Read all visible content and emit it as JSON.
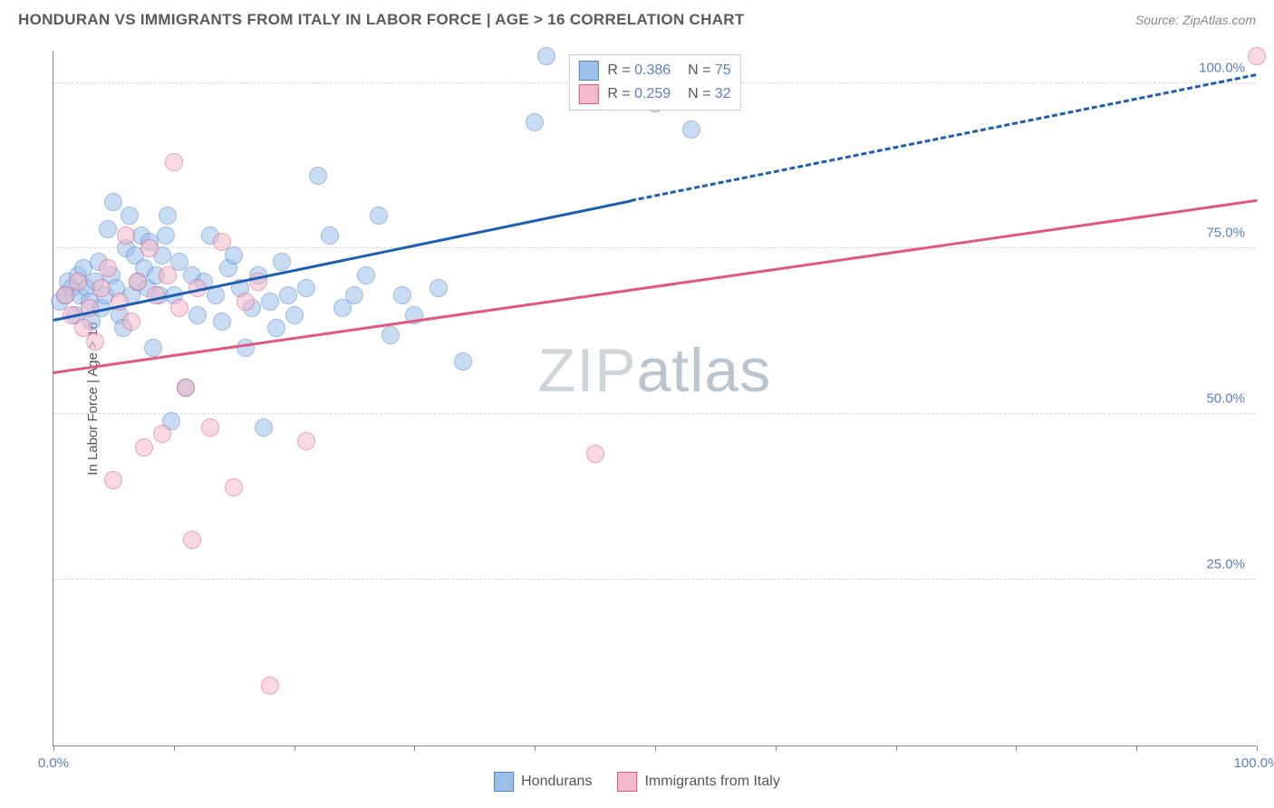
{
  "header": {
    "title": "HONDURAN VS IMMIGRANTS FROM ITALY IN LABOR FORCE | AGE > 16 CORRELATION CHART",
    "source": "Source: ZipAtlas.com"
  },
  "chart": {
    "type": "scatter",
    "ylabel": "In Labor Force | Age > 16",
    "background_color": "#ffffff",
    "grid_color": "#d6d6d6",
    "axis_color": "#888888",
    "label_fontsize": 15,
    "tick_color": "#5b7fbf",
    "xlim": [
      0,
      100
    ],
    "ylim": [
      0,
      105
    ],
    "xticks": [
      0,
      10,
      20,
      30,
      40,
      50,
      60,
      70,
      80,
      90,
      100
    ],
    "xtick_labels": {
      "0": "0.0%",
      "100": "100.0%"
    },
    "yticks": [
      25,
      50,
      75,
      100
    ],
    "ytick_labels": [
      "25.0%",
      "50.0%",
      "75.0%",
      "100.0%"
    ],
    "marker_radius": 9,
    "marker_opacity": 0.55,
    "watermark": "ZIPatlas",
    "series": [
      {
        "key": "hondurans",
        "label": "Hondurans",
        "color_fill": "#9cc0ea",
        "color_stroke": "#4f85c7",
        "R": "0.386",
        "N": "75",
        "trend": {
          "x1": 0,
          "y1": 64,
          "x2_solid": 48,
          "y2_solid": 82,
          "x2": 100,
          "y2": 101,
          "color": "#1b5fb4"
        },
        "points": [
          [
            0.5,
            67
          ],
          [
            1,
            68
          ],
          [
            1.2,
            70
          ],
          [
            1.5,
            69
          ],
          [
            1.8,
            65
          ],
          [
            2,
            71
          ],
          [
            2.2,
            68
          ],
          [
            2.5,
            72
          ],
          [
            2.8,
            69
          ],
          [
            3,
            67
          ],
          [
            3.2,
            64
          ],
          [
            3.5,
            70
          ],
          [
            3.8,
            73
          ],
          [
            4,
            66
          ],
          [
            4.3,
            68
          ],
          [
            4.5,
            78
          ],
          [
            4.8,
            71
          ],
          [
            5,
            82
          ],
          [
            5.2,
            69
          ],
          [
            5.5,
            65
          ],
          [
            5.8,
            63
          ],
          [
            6,
            75
          ],
          [
            6.3,
            80
          ],
          [
            6.5,
            68
          ],
          [
            6.8,
            74
          ],
          [
            7,
            70
          ],
          [
            7.3,
            77
          ],
          [
            7.5,
            72
          ],
          [
            7.8,
            69
          ],
          [
            8,
            76
          ],
          [
            8.3,
            60
          ],
          [
            8.5,
            71
          ],
          [
            8.8,
            68
          ],
          [
            9,
            74
          ],
          [
            9.3,
            77
          ],
          [
            9.5,
            80
          ],
          [
            9.8,
            49
          ],
          [
            10,
            68
          ],
          [
            10.5,
            73
          ],
          [
            11,
            54
          ],
          [
            11.5,
            71
          ],
          [
            12,
            65
          ],
          [
            12.5,
            70
          ],
          [
            13,
            77
          ],
          [
            13.5,
            68
          ],
          [
            14,
            64
          ],
          [
            14.5,
            72
          ],
          [
            15,
            74
          ],
          [
            15.5,
            69
          ],
          [
            16,
            60
          ],
          [
            16.5,
            66
          ],
          [
            17,
            71
          ],
          [
            17.5,
            48
          ],
          [
            18,
            67
          ],
          [
            18.5,
            63
          ],
          [
            19,
            73
          ],
          [
            19.5,
            68
          ],
          [
            20,
            65
          ],
          [
            21,
            69
          ],
          [
            22,
            86
          ],
          [
            23,
            77
          ],
          [
            24,
            66
          ],
          [
            25,
            68
          ],
          [
            26,
            71
          ],
          [
            27,
            80
          ],
          [
            28,
            62
          ],
          [
            29,
            68
          ],
          [
            30,
            65
          ],
          [
            32,
            69
          ],
          [
            34,
            58
          ],
          [
            40,
            94
          ],
          [
            41,
            104
          ],
          [
            50,
            97
          ],
          [
            53,
            93
          ],
          [
            52,
            103
          ]
        ]
      },
      {
        "key": "italy",
        "label": "Immigrants from Italy",
        "color_fill": "#f4b9cb",
        "color_stroke": "#e2577f",
        "R": "0.259",
        "N": "32",
        "trend": {
          "x1": 0,
          "y1": 56,
          "x2_solid": 100,
          "y2_solid": 82,
          "x2": 100,
          "y2": 82,
          "color": "#e2577f"
        },
        "points": [
          [
            1,
            68
          ],
          [
            1.5,
            65
          ],
          [
            2,
            70
          ],
          [
            2.5,
            63
          ],
          [
            3,
            66
          ],
          [
            3.5,
            61
          ],
          [
            4,
            69
          ],
          [
            4.5,
            72
          ],
          [
            5,
            40
          ],
          [
            5.5,
            67
          ],
          [
            6,
            77
          ],
          [
            6.5,
            64
          ],
          [
            7,
            70
          ],
          [
            7.5,
            45
          ],
          [
            8,
            75
          ],
          [
            8.5,
            68
          ],
          [
            9,
            47
          ],
          [
            9.5,
            71
          ],
          [
            10,
            88
          ],
          [
            10.5,
            66
          ],
          [
            11,
            54
          ],
          [
            11.5,
            31
          ],
          [
            12,
            69
          ],
          [
            13,
            48
          ],
          [
            14,
            76
          ],
          [
            15,
            39
          ],
          [
            16,
            67
          ],
          [
            17,
            70
          ],
          [
            18,
            9
          ],
          [
            21,
            46
          ],
          [
            45,
            44
          ],
          [
            100,
            104
          ]
        ]
      }
    ],
    "legend_top": {
      "r_label": "R =",
      "n_label": "N ="
    },
    "bottom_legend": [
      "Hondurans",
      "Immigrants from Italy"
    ]
  }
}
